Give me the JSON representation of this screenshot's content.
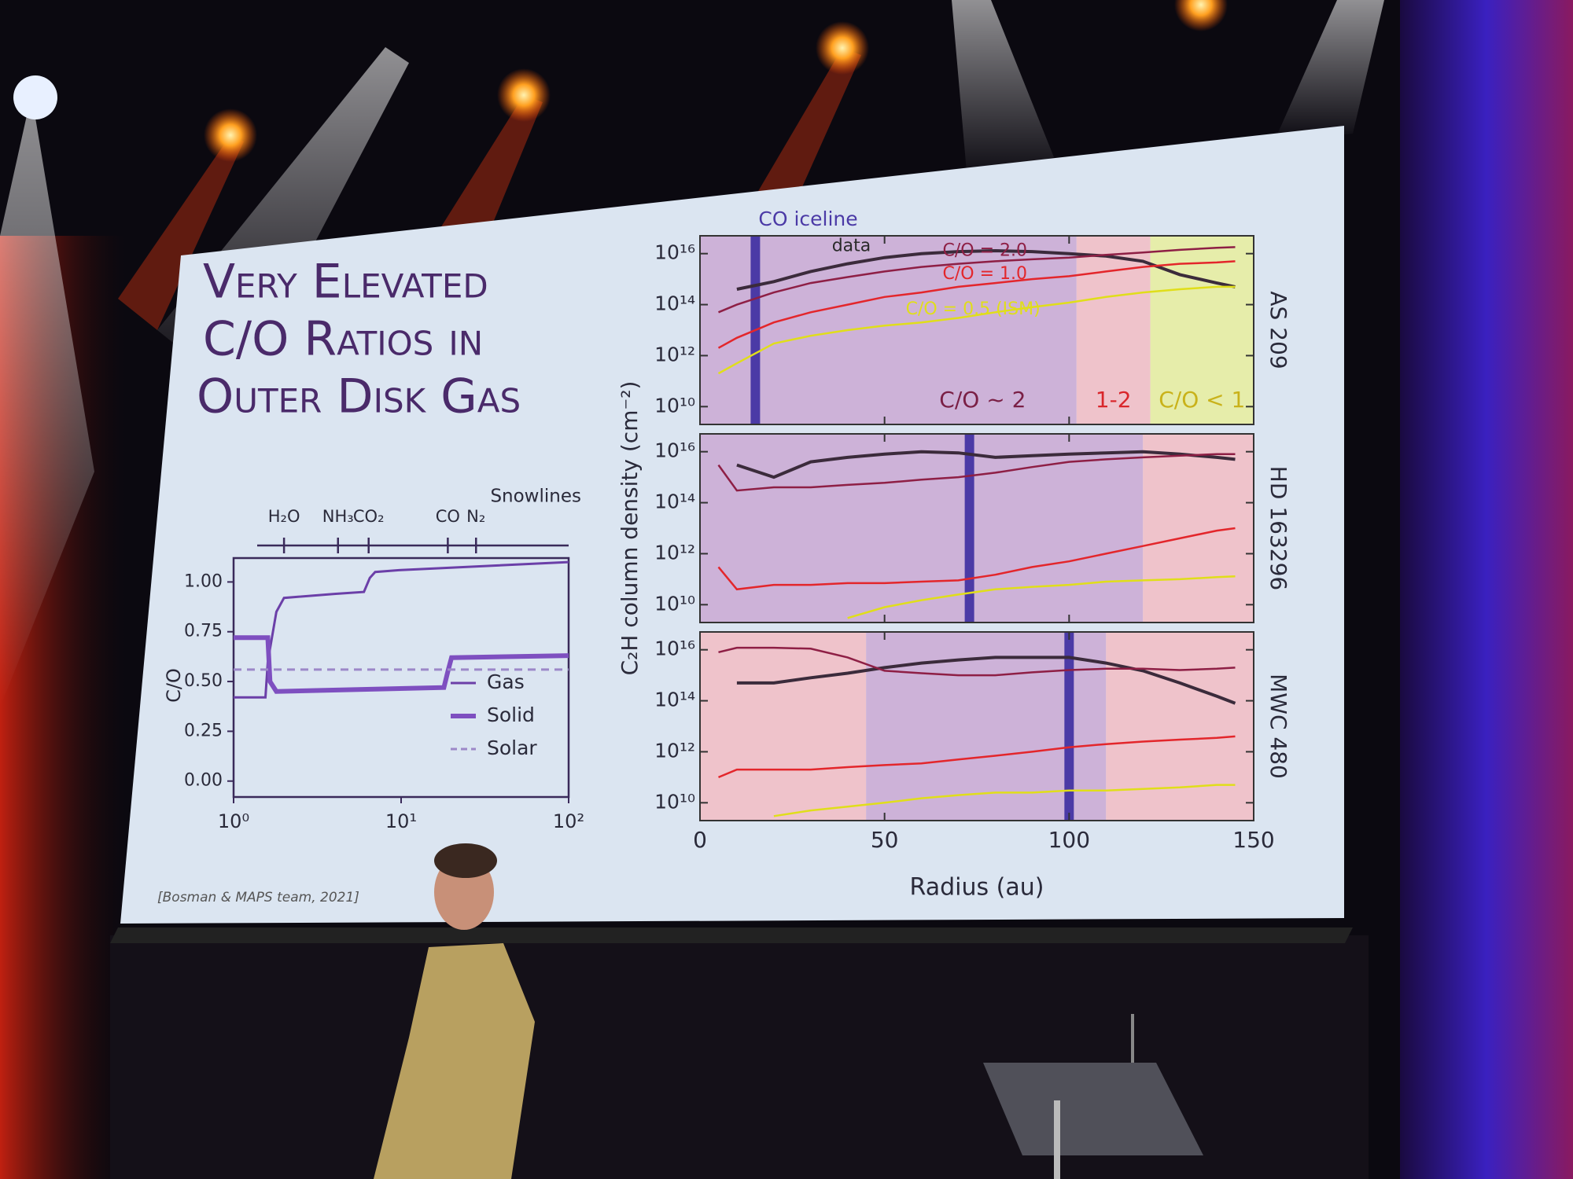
{
  "slide": {
    "title": [
      "Very Elevated",
      "C/O Ratios in",
      "Outer Disk Gas"
    ],
    "citation": "[Bosman & MAPS team, 2021]"
  },
  "chart_data": [
    {
      "type": "line",
      "xscale": "log",
      "xlim": [
        1,
        100
      ],
      "xticks": [
        {
          "value": 1,
          "label": "10⁰"
        },
        {
          "value": 10,
          "label": "10¹"
        },
        {
          "value": 100,
          "label": "10²"
        }
      ],
      "ylim": [
        -0.08,
        1.12
      ],
      "yticks": [
        {
          "value": 0,
          "label": "0.00"
        },
        {
          "value": 0.25,
          "label": "0.25"
        },
        {
          "value": 0.5,
          "label": "0.50"
        },
        {
          "value": 0.75,
          "label": "0.75"
        },
        {
          "value": 1,
          "label": "1.00"
        }
      ],
      "ylabel": "C/O",
      "snowlines_label": "Snowlines",
      "snowlines": [
        {
          "label": "H₂O",
          "x": 2
        },
        {
          "label": "NH₃",
          "x": 4.2
        },
        {
          "label": "CO₂",
          "x": 6.4
        },
        {
          "label": "CO",
          "x": 19
        },
        {
          "label": "N₂",
          "x": 28
        }
      ],
      "legend": "lower right",
      "series": [
        {
          "name": "Gas",
          "color": "#6b3fa8",
          "style": "solid",
          "x": [
            1,
            1.55,
            1.6,
            1.8,
            2,
            4,
            6,
            6.5,
            7,
            10,
            100
          ],
          "values": [
            0.42,
            0.42,
            0.6,
            0.85,
            0.92,
            0.94,
            0.95,
            1.02,
            1.05,
            1.06,
            1.1
          ]
        },
        {
          "name": "Solid",
          "color": "#7e4fc0",
          "style": "thick",
          "x": [
            1,
            1.6,
            1.65,
            1.8,
            18,
            19,
            20,
            100
          ],
          "values": [
            0.72,
            0.72,
            0.5,
            0.45,
            0.47,
            0.55,
            0.62,
            0.63
          ]
        },
        {
          "name": "Solar",
          "color": "#9c88c8",
          "style": "dashed",
          "x": [
            1,
            100
          ],
          "values": [
            0.56,
            0.56
          ]
        }
      ]
    },
    {
      "type": "line",
      "yscale": "log",
      "xlim": [
        0,
        150
      ],
      "xticks": [
        0,
        50,
        100,
        150
      ],
      "xlabel": "Radius (au)",
      "ylabel": "C₂H column density (cm⁻²)",
      "ylim": [
        2000000000.0,
        5e+16
      ],
      "yticks": [
        {
          "value": 10000000000.0,
          "label": "10¹⁰"
        },
        {
          "value": 1000000000000.0,
          "label": "10¹²"
        },
        {
          "value": 100000000000000.0,
          "label": "10¹⁴"
        },
        {
          "value": 1e+16,
          "label": "10¹⁶"
        }
      ],
      "iceline_label": "CO iceline",
      "iceline_color": "#4b3aa6",
      "series": [
        {
          "name": "data",
          "color": "#3b2b3b"
        },
        {
          "name": "C/O = 2.0",
          "color": "#8e1f45"
        },
        {
          "name": "C/O = 1.0",
          "color": "#e3262b"
        },
        {
          "name": "C/O = 0.5 (ISM)",
          "color": "#e0de1a"
        }
      ],
      "panels": [
        {
          "name": "AS 209",
          "iceline": 15,
          "regions": [
            {
              "from": 0,
              "to": 102,
              "color": "#cdb2d8",
              "label": "C/O ~ 2",
              "label_color": "#7a1f45"
            },
            {
              "from": 102,
              "to": 122,
              "color": "#efc3cb",
              "label": "1-2",
              "label_color": "#d9262b"
            },
            {
              "from": 122,
              "to": 150,
              "color": "#e6edaa",
              "label": "C/O < 1",
              "label_color": "#c9b21a"
            }
          ],
          "x": [
            5,
            10,
            20,
            30,
            40,
            50,
            60,
            70,
            80,
            90,
            100,
            110,
            120,
            130,
            140,
            145
          ],
          "values": [
            [
              null,
              400000000000000.0,
              800000000000000.0,
              2000000000000000.0,
              4000000000000000.0,
              7000000000000000.0,
              1e+16,
              1.2e+16,
              1.3e+16,
              1.2e+16,
              1e+16,
              8000000000000000.0,
              5000000000000000.0,
              1500000000000000.0,
              700000000000000.0,
              500000000000000.0
            ],
            [
              50000000000000.0,
              100000000000000.0,
              300000000000000.0,
              700000000000000.0,
              1200000000000000.0,
              2000000000000000.0,
              3000000000000000.0,
              4000000000000000.0,
              5000000000000000.0,
              6000000000000000.0,
              7000000000000000.0,
              9000000000000000.0,
              1.1e+16,
              1.4e+16,
              1.7e+16,
              1.8e+16
            ],
            [
              2000000000000.0,
              5000000000000.0,
              20000000000000.0,
              50000000000000.0,
              100000000000000.0,
              200000000000000.0,
              300000000000000.0,
              500000000000000.0,
              700000000000000.0,
              1000000000000000.0,
              1300000000000000.0,
              2000000000000000.0,
              3000000000000000.0,
              4000000000000000.0,
              4500000000000000.0,
              5000000000000000.0
            ],
            [
              200000000000.0,
              500000000000.0,
              3000000000000.0,
              6000000000000.0,
              10000000000000.0,
              15000000000000.0,
              20000000000000.0,
              30000000000000.0,
              50000000000000.0,
              80000000000000.0,
              120000000000000.0,
              200000000000000.0,
              300000000000000.0,
              400000000000000.0,
              500000000000000.0,
              500000000000000.0
            ]
          ]
        },
        {
          "name": "HD 163296",
          "iceline": 73,
          "regions": [
            {
              "from": 0,
              "to": 120,
              "color": "#cdb2d8"
            },
            {
              "from": 120,
              "to": 150,
              "color": "#efc3cb"
            }
          ],
          "x": [
            5,
            10,
            20,
            30,
            40,
            50,
            60,
            70,
            80,
            90,
            100,
            110,
            120,
            130,
            140,
            145
          ],
          "values": [
            [
              null,
              3000000000000000.0,
              1000000000000000.0,
              4000000000000000.0,
              6000000000000000.0,
              8000000000000000.0,
              1e+16,
              9000000000000000.0,
              6000000000000000.0,
              7000000000000000.0,
              8000000000000000.0,
              9000000000000000.0,
              1e+16,
              8000000000000000.0,
              6000000000000000.0,
              5000000000000000.0
            ],
            [
              3000000000000000.0,
              300000000000000.0,
              400000000000000.0,
              400000000000000.0,
              500000000000000.0,
              600000000000000.0,
              800000000000000.0,
              1000000000000000.0,
              1500000000000000.0,
              2500000000000000.0,
              4000000000000000.0,
              5000000000000000.0,
              6000000000000000.0,
              7000000000000000.0,
              8000000000000000.0,
              8000000000000000.0
            ],
            [
              300000000000.0,
              40000000000.0,
              60000000000.0,
              60000000000.0,
              70000000000.0,
              70000000000.0,
              80000000000.0,
              90000000000.0,
              150000000000.0,
              300000000000.0,
              500000000000.0,
              1000000000000.0,
              2000000000000.0,
              4000000000000.0,
              8000000000000.0,
              10000000000000.0
            ],
            [
              null,
              null,
              null,
              null,
              3000000000.0,
              8000000000.0,
              15000000000.0,
              25000000000.0,
              40000000000.0,
              50000000000.0,
              60000000000.0,
              80000000000.0,
              90000000000.0,
              100000000000.0,
              120000000000.0,
              130000000000.0
            ]
          ]
        },
        {
          "name": "MWC 480",
          "iceline": 100,
          "regions": [
            {
              "from": 0,
              "to": 45,
              "color": "#efc3cb"
            },
            {
              "from": 45,
              "to": 110,
              "color": "#cdb2d8"
            },
            {
              "from": 110,
              "to": 150,
              "color": "#efc3cb"
            }
          ],
          "x": [
            5,
            10,
            20,
            30,
            40,
            50,
            60,
            70,
            80,
            90,
            100,
            110,
            120,
            130,
            140,
            145
          ],
          "values": [
            [
              null,
              500000000000000.0,
              500000000000000.0,
              800000000000000.0,
              1200000000000000.0,
              2000000000000000.0,
              3000000000000000.0,
              4000000000000000.0,
              5000000000000000.0,
              5000000000000000.0,
              5000000000000000.0,
              3000000000000000.0,
              1500000000000000.0,
              500000000000000.0,
              150000000000000.0,
              80000000000000.0
            ],
            [
              8000000000000000.0,
              1.2e+16,
              1.2e+16,
              1.1e+16,
              5000000000000000.0,
              1500000000000000.0,
              1200000000000000.0,
              1000000000000000.0,
              1000000000000000.0,
              1300000000000000.0,
              1600000000000000.0,
              1800000000000000.0,
              1800000000000000.0,
              1600000000000000.0,
              1800000000000000.0,
              2000000000000000.0
            ],
            [
              100000000000.0,
              200000000000.0,
              200000000000.0,
              200000000000.0,
              250000000000.0,
              300000000000.0,
              350000000000.0,
              500000000000.0,
              700000000000.0,
              1000000000000.0,
              1500000000000.0,
              2000000000000.0,
              2500000000000.0,
              3000000000000.0,
              3500000000000.0,
              4000000000000.0
            ],
            [
              null,
              null,
              3000000000.0,
              5000000000.0,
              7000000000.0,
              10000000000.0,
              15000000000.0,
              20000000000.0,
              25000000000.0,
              25000000000.0,
              30000000000.0,
              30000000000.0,
              35000000000.0,
              40000000000.0,
              50000000000.0,
              50000000000.0
            ]
          ]
        }
      ]
    }
  ]
}
